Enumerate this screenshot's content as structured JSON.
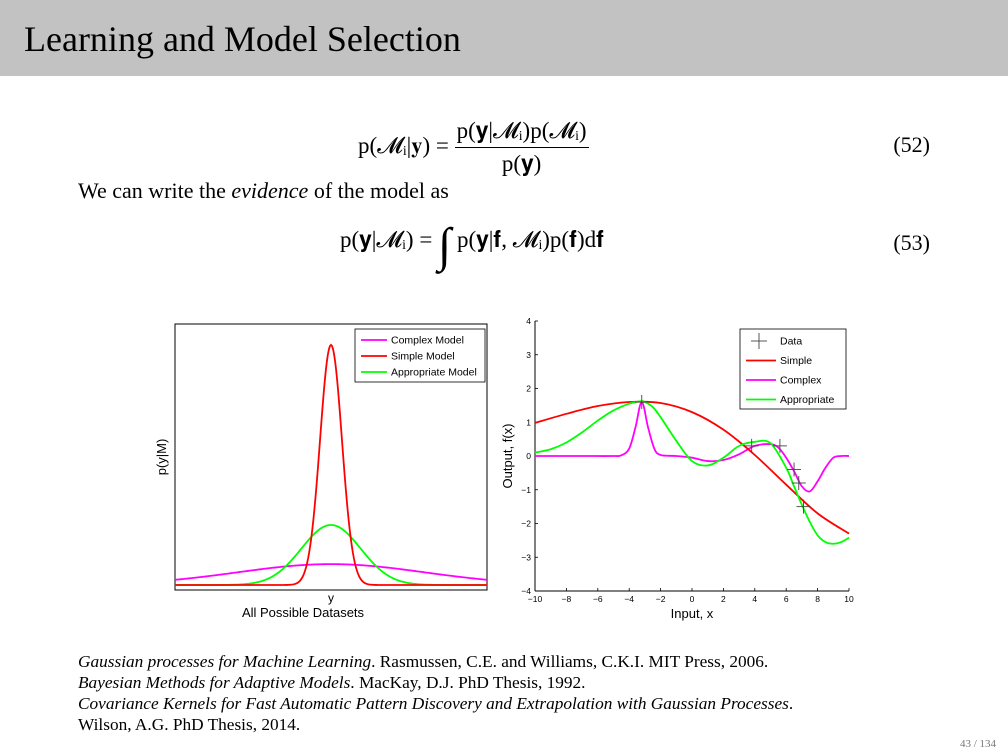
{
  "slide": {
    "title": "Learning and Model Selection",
    "page_number": "43 / 134"
  },
  "eq52": {
    "lhs": "p(𝓜ᵢ|𝐲) =",
    "numerator": "p(𝐲|𝓜ᵢ)p(𝓜ᵢ)",
    "denominator": "p(𝐲)",
    "number": "(52)"
  },
  "text": {
    "pre": "We can write the ",
    "emph": "evidence",
    "post": " of the model as"
  },
  "eq53": {
    "lhs": "p(𝐲|𝓜ᵢ) =",
    "integral": "∫",
    "integrand": "p(𝐲|𝐟, 𝓜ᵢ)p(𝐟)d𝐟",
    "number": "(53)"
  },
  "chart_data": [
    {
      "type": "line",
      "ylabel": "p(y|M)",
      "xlabel": "y",
      "xlabel2": "All Possible Datasets",
      "x_ticks": "none",
      "y_ticks": "none",
      "legend_position": "top-right",
      "series": [
        {
          "name": "Complex Model",
          "color": "#ff00ff",
          "shape": "wide gaussian",
          "peak_fraction": 0.08
        },
        {
          "name": "Simple Model",
          "color": "#ff0000",
          "shape": "narrow gaussian",
          "peak_fraction": 0.92
        },
        {
          "name": "Appropriate Model",
          "color": "#00ff00",
          "shape": "medium gaussian",
          "peak_fraction": 0.23
        }
      ]
    },
    {
      "type": "line",
      "xlabel": "Input, x",
      "ylabel": "Output, f(x)",
      "xlim": [
        -10,
        10
      ],
      "ylim": [
        -4,
        4
      ],
      "x_ticks": [
        -10,
        -8,
        -6,
        -4,
        -2,
        0,
        2,
        4,
        6,
        8,
        10
      ],
      "y_ticks": [
        -4,
        -3,
        -2,
        -1,
        0,
        1,
        2,
        3,
        4
      ],
      "legend_position": "top-right",
      "data_points": {
        "name": "Data",
        "x": [
          -3.2,
          3.8,
          5.6,
          6.5,
          6.8,
          7.1
        ],
        "y": [
          1.6,
          0.3,
          0.3,
          -0.4,
          -0.8,
          -1.5
        ]
      },
      "series": [
        {
          "name": "Simple",
          "color": "#ff0000",
          "x": [
            -10,
            -8,
            -6,
            -4,
            -2,
            0,
            2,
            4,
            6,
            8,
            10
          ],
          "y": [
            0.98,
            1.25,
            1.48,
            1.6,
            1.57,
            1.3,
            0.78,
            0.03,
            -0.85,
            -1.7,
            -2.3
          ]
        },
        {
          "name": "Complex",
          "color": "#ff00ff",
          "x": [
            -10,
            -7,
            -5,
            -4.5,
            -4,
            -3.6,
            -3.2,
            -2.8,
            -2.4,
            -2,
            -1,
            0,
            1,
            2,
            3,
            4,
            5,
            5.5,
            6,
            6.5,
            7,
            7.5,
            8,
            8.5,
            9,
            9.5,
            10
          ],
          "y": [
            0,
            0,
            0,
            0.02,
            0.22,
            0.85,
            1.6,
            0.85,
            0.22,
            0.03,
            0,
            -0.05,
            -0.15,
            -0.12,
            0.05,
            0.3,
            0.35,
            0.25,
            -0.05,
            -0.45,
            -0.9,
            -1.05,
            -0.75,
            -0.35,
            -0.05,
            0,
            0
          ]
        },
        {
          "name": "Appropriate",
          "color": "#00ff00",
          "x": [
            -10,
            -9,
            -8,
            -7,
            -6,
            -5,
            -4,
            -3.3,
            -3,
            -2.5,
            -2,
            -1,
            0,
            1,
            2,
            3,
            4,
            5,
            6,
            6.5,
            7,
            7.5,
            8,
            8.5,
            9,
            9.5,
            10
          ],
          "y": [
            0.1,
            0.2,
            0.4,
            0.7,
            1.05,
            1.35,
            1.55,
            1.62,
            1.6,
            1.45,
            1.15,
            0.45,
            -0.15,
            -0.28,
            -0.05,
            0.3,
            0.42,
            0.38,
            -0.35,
            -0.9,
            -1.45,
            -1.95,
            -2.35,
            -2.55,
            -2.6,
            -2.55,
            -2.42
          ]
        }
      ]
    }
  ],
  "references": [
    {
      "italic": "Gaussian processes for Machine Learning",
      "plain": ". Rasmussen, C.E. and Williams, C.K.I. MIT Press, 2006."
    },
    {
      "italic": "Bayesian Methods for Adaptive Models",
      "plain": ". MacKay, D.J. PhD Thesis, 1992."
    },
    {
      "italic": "Covariance Kernels for Fast Automatic Pattern Discovery and Extrapolation with Gaussian Processes",
      "plain": "."
    },
    {
      "italic": "",
      "plain": "Wilson, A.G. PhD Thesis, 2014."
    }
  ]
}
